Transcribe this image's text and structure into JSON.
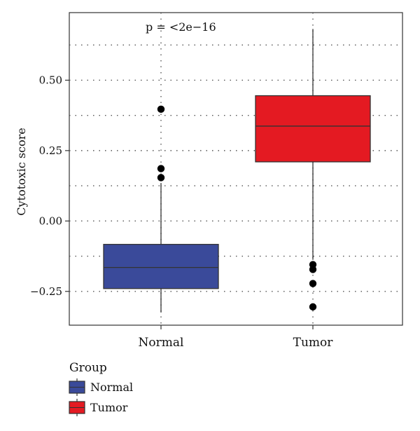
{
  "chart_data": {
    "type": "box",
    "ylabel": "Cytotoxic score",
    "xlabel": "",
    "ylim": [
      -0.37,
      0.74
    ],
    "y_ticks": [
      -0.25,
      0.0,
      0.25,
      0.5
    ],
    "y_tick_labels": [
      "−0.25",
      "0.00",
      "0.25",
      "0.50"
    ],
    "grid": true,
    "annotation": "p = <2e−16",
    "categories": [
      "Normal",
      "Tumor"
    ],
    "boxes": [
      {
        "name": "Normal",
        "color": "#3A4A9A",
        "whisker_low": -0.325,
        "q1": -0.24,
        "median": -0.165,
        "q3": -0.083,
        "whisker_high": 0.135,
        "outliers": [
          0.397,
          0.186,
          0.154
        ]
      },
      {
        "name": "Tumor",
        "color": "#E41A22",
        "whisker_low": -0.138,
        "q1": 0.21,
        "median": 0.337,
        "q3": 0.445,
        "whisker_high": 0.682,
        "outliers": [
          -0.155,
          -0.172,
          -0.222,
          -0.305
        ]
      }
    ],
    "legend": {
      "title": "Group",
      "position": "bottom-left",
      "items": [
        {
          "label": "Normal",
          "color": "#3A4A9A"
        },
        {
          "label": "Tumor",
          "color": "#E41A22"
        }
      ]
    }
  }
}
